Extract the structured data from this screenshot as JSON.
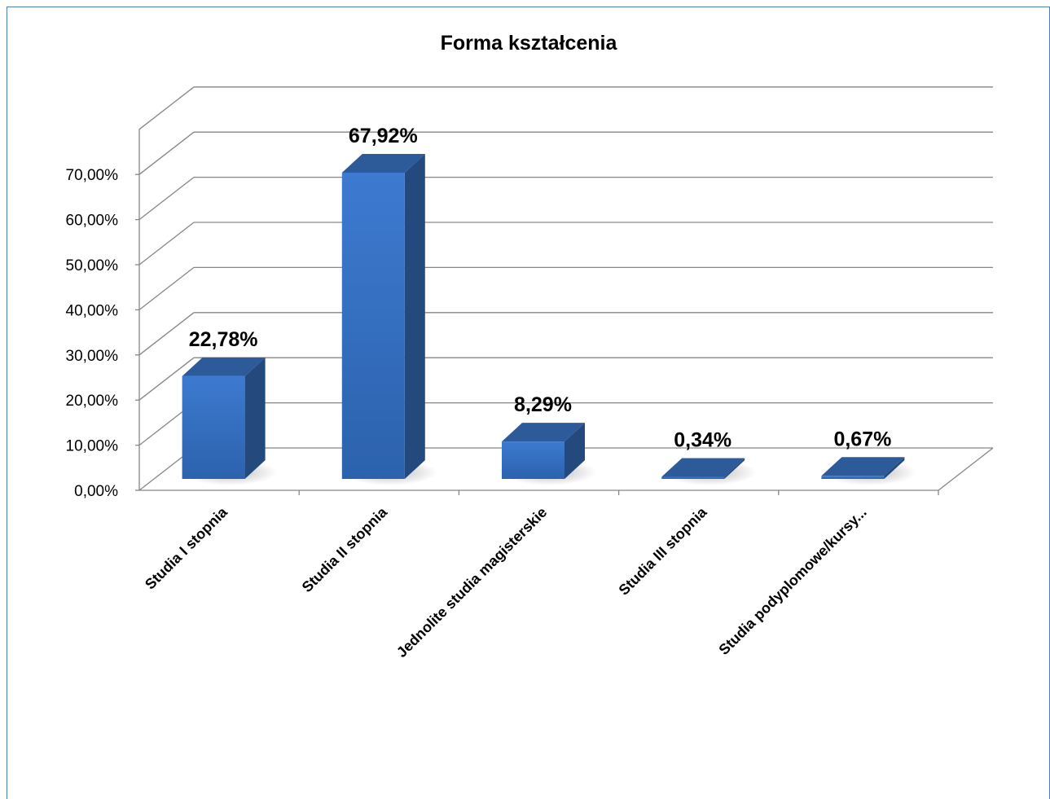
{
  "chart_data": {
    "type": "bar",
    "title": "Forma kształcenia",
    "categories": [
      "Studia I stopnia",
      "Studia II stopnia",
      "Jednolite studia magisterskie",
      "Studia III stopnia",
      "Studia podyplomowe/kursy..."
    ],
    "values": [
      22.78,
      67.92,
      8.29,
      0.34,
      0.67
    ],
    "data_labels": [
      "22,78%",
      "67,92%",
      "8,29%",
      "0,34%",
      "0,67%"
    ],
    "ylim": [
      0,
      70
    ],
    "yticks": [
      "0,00%",
      "10,00%",
      "20,00%",
      "30,00%",
      "40,00%",
      "50,00%",
      "60,00%",
      "70,00%"
    ],
    "grid": true,
    "three_d": true,
    "bar_color": "#3a73c0",
    "bar_side_color": "#24497c",
    "bar_top_color": "#2d5a99"
  }
}
